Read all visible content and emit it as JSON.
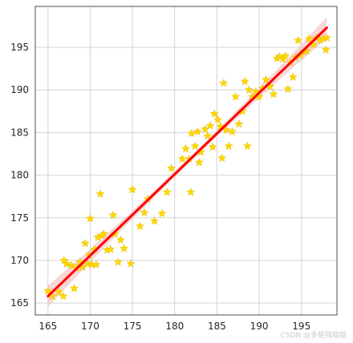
{
  "chart_data": {
    "type": "scatter",
    "title": "",
    "xlabel": "",
    "ylabel": "",
    "xlim": [
      163.5,
      199.2
    ],
    "ylim": [
      163.6,
      199.8
    ],
    "xticks": [
      165,
      170,
      175,
      180,
      185,
      190,
      195
    ],
    "yticks": [
      165,
      170,
      175,
      180,
      185,
      190,
      195
    ],
    "grid": true,
    "marker": "star",
    "colors": {
      "points": "#FFD700",
      "points_edge": "#e0b800",
      "fit_line": "#FF0000",
      "confidence_band": "#f4c6c6",
      "grid": "#d3d3d3",
      "axes": "#4d4d4d",
      "background": "#ffffff"
    },
    "fit_line": {
      "x": [
        165,
        198
      ],
      "y": [
        165.8,
        197.3
      ]
    },
    "points": [
      {
        "x": 165.0,
        "y": 166.4
      },
      {
        "x": 165.5,
        "y": 165.8
      },
      {
        "x": 166.3,
        "y": 166.3
      },
      {
        "x": 166.8,
        "y": 165.8
      },
      {
        "x": 166.9,
        "y": 170.0
      },
      {
        "x": 167.2,
        "y": 169.6
      },
      {
        "x": 167.8,
        "y": 169.4
      },
      {
        "x": 168.1,
        "y": 166.7
      },
      {
        "x": 168.4,
        "y": 169.1
      },
      {
        "x": 168.8,
        "y": 169.8
      },
      {
        "x": 169.1,
        "y": 169.2
      },
      {
        "x": 169.4,
        "y": 172.0
      },
      {
        "x": 169.7,
        "y": 169.6
      },
      {
        "x": 169.9,
        "y": 170.6
      },
      {
        "x": 170.0,
        "y": 174.9
      },
      {
        "x": 170.2,
        "y": 169.5
      },
      {
        "x": 170.5,
        "y": 171.3
      },
      {
        "x": 170.7,
        "y": 169.5
      },
      {
        "x": 170.9,
        "y": 172.7
      },
      {
        "x": 171.2,
        "y": 177.8
      },
      {
        "x": 171.4,
        "y": 172.9
      },
      {
        "x": 171.6,
        "y": 173.1
      },
      {
        "x": 172.0,
        "y": 171.2
      },
      {
        "x": 172.4,
        "y": 171.3
      },
      {
        "x": 172.7,
        "y": 175.3
      },
      {
        "x": 172.9,
        "y": 173.1
      },
      {
        "x": 173.3,
        "y": 169.8
      },
      {
        "x": 173.6,
        "y": 172.4
      },
      {
        "x": 174.0,
        "y": 171.4
      },
      {
        "x": 174.8,
        "y": 169.6
      },
      {
        "x": 175.0,
        "y": 178.3
      },
      {
        "x": 175.9,
        "y": 174.0
      },
      {
        "x": 176.4,
        "y": 175.6
      },
      {
        "x": 176.8,
        "y": 177.2
      },
      {
        "x": 177.6,
        "y": 174.6
      },
      {
        "x": 178.5,
        "y": 175.5
      },
      {
        "x": 179.1,
        "y": 178.0
      },
      {
        "x": 179.6,
        "y": 180.8
      },
      {
        "x": 180.9,
        "y": 181.9
      },
      {
        "x": 181.3,
        "y": 183.1
      },
      {
        "x": 181.7,
        "y": 181.9
      },
      {
        "x": 181.9,
        "y": 178.0
      },
      {
        "x": 182.0,
        "y": 184.9
      },
      {
        "x": 182.4,
        "y": 183.4
      },
      {
        "x": 182.7,
        "y": 185.1
      },
      {
        "x": 182.9,
        "y": 181.5
      },
      {
        "x": 183.1,
        "y": 182.7
      },
      {
        "x": 183.6,
        "y": 185.4
      },
      {
        "x": 183.9,
        "y": 184.6
      },
      {
        "x": 184.2,
        "y": 185.8
      },
      {
        "x": 184.5,
        "y": 183.3
      },
      {
        "x": 184.7,
        "y": 187.2
      },
      {
        "x": 185.1,
        "y": 186.5
      },
      {
        "x": 185.4,
        "y": 185.7
      },
      {
        "x": 185.6,
        "y": 182.0
      },
      {
        "x": 185.8,
        "y": 190.8
      },
      {
        "x": 186.1,
        "y": 185.3
      },
      {
        "x": 186.4,
        "y": 183.4
      },
      {
        "x": 186.8,
        "y": 185.1
      },
      {
        "x": 187.2,
        "y": 189.2
      },
      {
        "x": 187.6,
        "y": 186.0
      },
      {
        "x": 188.0,
        "y": 187.5
      },
      {
        "x": 188.3,
        "y": 191.0
      },
      {
        "x": 188.6,
        "y": 183.4
      },
      {
        "x": 188.8,
        "y": 190.0
      },
      {
        "x": 189.2,
        "y": 189.2
      },
      {
        "x": 189.6,
        "y": 189.8
      },
      {
        "x": 190.0,
        "y": 189.2
      },
      {
        "x": 190.4,
        "y": 190.2
      },
      {
        "x": 190.8,
        "y": 191.2
      },
      {
        "x": 191.3,
        "y": 190.4
      },
      {
        "x": 191.7,
        "y": 189.5
      },
      {
        "x": 192.1,
        "y": 193.7
      },
      {
        "x": 192.4,
        "y": 193.9
      },
      {
        "x": 192.8,
        "y": 193.6
      },
      {
        "x": 193.1,
        "y": 194.0
      },
      {
        "x": 193.4,
        "y": 190.1
      },
      {
        "x": 193.7,
        "y": 193.2
      },
      {
        "x": 194.0,
        "y": 191.5
      },
      {
        "x": 194.3,
        "y": 193.8
      },
      {
        "x": 194.6,
        "y": 195.8
      },
      {
        "x": 194.9,
        "y": 194.1
      },
      {
        "x": 195.3,
        "y": 194.5
      },
      {
        "x": 195.6,
        "y": 194.6
      },
      {
        "x": 195.9,
        "y": 196.0
      },
      {
        "x": 196.4,
        "y": 195.3
      },
      {
        "x": 196.8,
        "y": 196.1
      },
      {
        "x": 197.2,
        "y": 195.8
      },
      {
        "x": 197.6,
        "y": 196.0
      },
      {
        "x": 197.9,
        "y": 194.7
      },
      {
        "x": 198.0,
        "y": 196.1
      }
    ]
  },
  "watermark": {
    "text": "CSDN @多矩阵暗暗"
  }
}
